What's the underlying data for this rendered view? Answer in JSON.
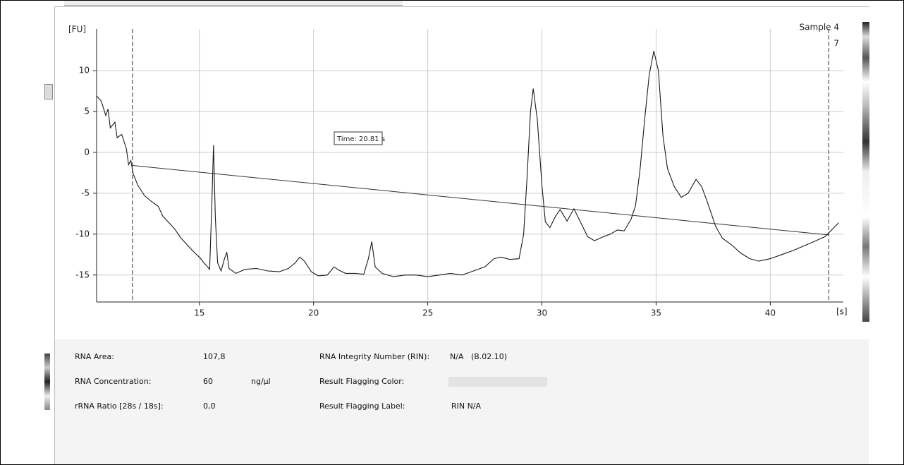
{
  "chart_data": {
    "type": "line",
    "y_label": "[FU]",
    "x_label": "[s]",
    "sample_name": "Sample 4",
    "sample_number": "7",
    "annotation": "Time: 20.81 s",
    "xlim": [
      10.5,
      43.2
    ],
    "ylim": [
      -18.3,
      15.1
    ],
    "xticks": [
      15,
      20,
      25,
      30,
      35,
      40
    ],
    "yticks": [
      -15,
      -10,
      -5,
      0,
      5,
      10
    ],
    "grid": true,
    "color": "#1a1a1a",
    "markers": [
      12.07,
      42.56
    ],
    "baseline": {
      "x": [
        12.07,
        42.56
      ],
      "y": [
        -1.6,
        -10.1
      ]
    },
    "x": [
      10.5,
      10.7,
      10.9,
      11.0,
      11.1,
      11.3,
      11.4,
      11.6,
      11.8,
      11.9,
      12.0,
      12.1,
      12.3,
      12.6,
      12.9,
      13.2,
      13.4,
      13.7,
      13.9,
      14.2,
      14.5,
      14.8,
      15.0,
      15.2,
      15.45,
      15.55,
      15.62,
      15.7,
      15.8,
      15.95,
      16.1,
      16.2,
      16.3,
      16.6,
      17.0,
      17.5,
      18.0,
      18.5,
      18.9,
      19.2,
      19.4,
      19.6,
      19.9,
      20.2,
      20.6,
      20.9,
      21.1,
      21.4,
      21.8,
      22.2,
      22.4,
      22.55,
      22.7,
      23.0,
      23.5,
      24.0,
      24.5,
      25.0,
      25.5,
      26.0,
      26.5,
      27.0,
      27.5,
      27.9,
      28.2,
      28.6,
      29.0,
      29.2,
      29.35,
      29.5,
      29.62,
      29.8,
      30.0,
      30.15,
      30.35,
      30.6,
      30.8,
      31.1,
      31.4,
      31.7,
      32.0,
      32.3,
      32.7,
      33.0,
      33.3,
      33.6,
      33.9,
      34.1,
      34.3,
      34.5,
      34.7,
      34.9,
      35.1,
      35.3,
      35.5,
      35.8,
      36.1,
      36.4,
      36.75,
      37.0,
      37.3,
      37.6,
      37.9,
      38.3,
      38.7,
      39.1,
      39.5,
      40.0,
      40.5,
      41.0,
      41.5,
      42.0,
      42.4,
      43.0
    ],
    "values": [
      6.9,
      6.3,
      4.5,
      5.3,
      3.0,
      3.7,
      1.8,
      2.2,
      0.5,
      -1.5,
      -1.0,
      -2.6,
      -4.0,
      -5.3,
      -6.0,
      -6.6,
      -7.8,
      -8.7,
      -9.3,
      -10.5,
      -11.4,
      -12.3,
      -12.8,
      -13.5,
      -14.3,
      -6.0,
      0.9,
      -8.0,
      -13.5,
      -14.5,
      -13.0,
      -12.2,
      -14.2,
      -14.8,
      -14.3,
      -14.2,
      -14.5,
      -14.6,
      -14.2,
      -13.5,
      -12.8,
      -13.3,
      -14.6,
      -15.1,
      -15.0,
      -14.0,
      -14.4,
      -14.8,
      -14.8,
      -14.9,
      -13.0,
      -10.9,
      -14.0,
      -14.8,
      -15.2,
      -15.0,
      -15.0,
      -15.2,
      -15.0,
      -14.8,
      -15.0,
      -14.5,
      -14.0,
      -13.0,
      -12.8,
      -13.1,
      -13.0,
      -10.0,
      -3.0,
      5.0,
      7.8,
      4.0,
      -4.0,
      -8.5,
      -9.2,
      -7.8,
      -7.0,
      -8.4,
      -6.9,
      -8.6,
      -10.3,
      -10.8,
      -10.3,
      -10.0,
      -9.5,
      -9.6,
      -8.2,
      -6.5,
      -2.0,
      4.0,
      9.5,
      12.4,
      10.0,
      2.0,
      -2.0,
      -4.2,
      -5.5,
      -5.0,
      -3.3,
      -4.2,
      -6.5,
      -9.0,
      -10.5,
      -11.3,
      -12.3,
      -13.0,
      -13.3,
      -13.0,
      -12.5,
      -12.0,
      -11.4,
      -10.8,
      -10.3,
      -8.6
    ]
  },
  "results": {
    "rna_area": {
      "label": "RNA Area:",
      "value": "107,8"
    },
    "rna_concentration": {
      "label": "RNA Concentration:",
      "value": "60",
      "unit": "ng/µl"
    },
    "rrna_ratio": {
      "label": "rRNA Ratio [28s / 18s]:",
      "value": "0,0"
    },
    "rin": {
      "label": "RNA Integrity Number (RIN):",
      "value": "N/A   (B.02.10)"
    },
    "flag_color": {
      "label": "Result Flagging Color:"
    },
    "flag_label": {
      "label": "Result Flagging Label:",
      "value": "RIN N/A"
    }
  }
}
